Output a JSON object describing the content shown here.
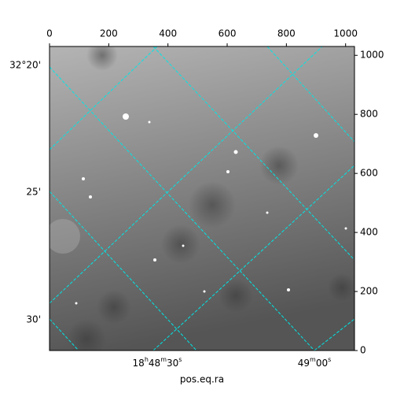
{
  "chart_data": {
    "type": "image",
    "xlabel": "pos.eq.ra",
    "xlim": [
      0,
      1030
    ],
    "xticks": [
      0,
      200,
      400,
      600,
      800,
      1000
    ],
    "ylim": [
      0,
      1030
    ],
    "yticks": [
      0,
      200,
      400,
      600,
      800,
      1000
    ],
    "ra_ticks": [
      "18h48m30s",
      "49m00s"
    ],
    "dec_ticks": [
      "32°20'",
      "25'",
      "30'"
    ],
    "grid_color": "#00e5e5"
  }
}
